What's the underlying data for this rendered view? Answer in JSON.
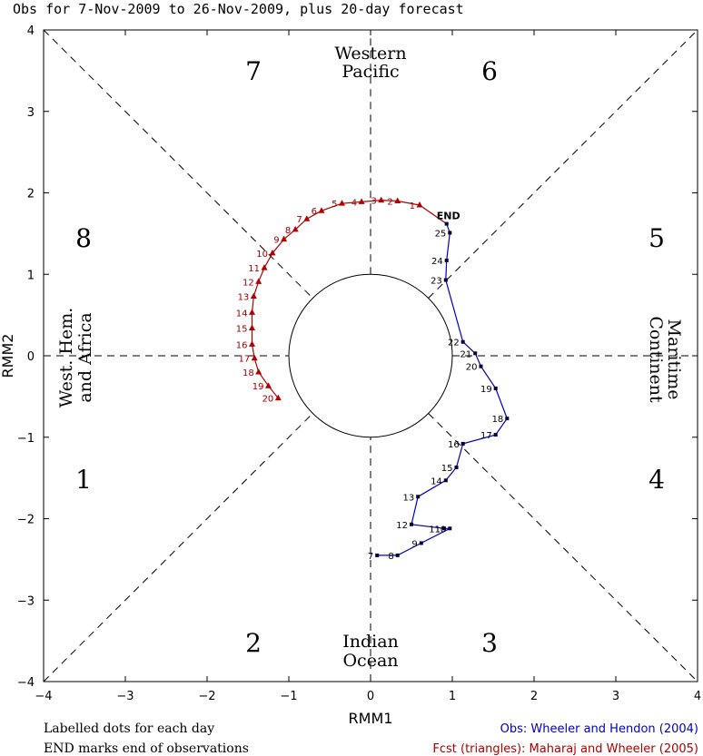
{
  "title": "Obs for  7-Nov-2009 to 26-Nov-2009, plus 20-day forecast",
  "colors": {
    "obs": "#0000c0",
    "forecast": "#b00000",
    "frame": "#000000"
  },
  "phases": [
    {
      "id": "1",
      "label": "1"
    },
    {
      "id": "2",
      "label": "2"
    },
    {
      "id": "3",
      "label": "3"
    },
    {
      "id": "4",
      "label": "4"
    },
    {
      "id": "5",
      "label": "5"
    },
    {
      "id": "6",
      "label": "6"
    },
    {
      "id": "7",
      "label": "7"
    },
    {
      "id": "8",
      "label": "8"
    }
  ],
  "regions": {
    "western_pacific": [
      "Western",
      "Pacific"
    ],
    "indian_ocean": [
      "Indian",
      "Ocean"
    ],
    "maritime_continent": [
      "Maritime",
      "Continent"
    ],
    "west_hem": [
      "West. Hem.",
      "and Africa"
    ]
  },
  "notes": {
    "line1": "Labelled dots for each day",
    "line2": "END marks end of observations",
    "obs_credit": "Obs: Wheeler and Hendon (2004)",
    "fcst_credit": "Fcst (triangles): Maharaj and Wheeler (2005)"
  },
  "chart_data": {
    "type": "scatter",
    "xlabel": "RMM1",
    "ylabel": "RMM2",
    "xlim": [
      -4,
      4
    ],
    "ylim": [
      -4,
      4
    ],
    "xticks": [
      "−4",
      "−3",
      "−2",
      "−1",
      "0",
      "1",
      "2",
      "3",
      "4"
    ],
    "yticks": [
      "−4",
      "−3",
      "−2",
      "−1",
      "0",
      "1",
      "2",
      "3",
      "4"
    ],
    "unit_circle_radius": 1,
    "end_label": "END",
    "series": [
      {
        "name": "Obs",
        "marker": "dot",
        "points": [
          {
            "day": "7",
            "x": 0.08,
            "y": -2.45
          },
          {
            "day": "8",
            "x": 0.33,
            "y": -2.45
          },
          {
            "day": "9",
            "x": 0.62,
            "y": -2.3
          },
          {
            "day": "10",
            "x": 0.97,
            "y": -2.12
          },
          {
            "day": "11",
            "x": 0.9,
            "y": -2.12
          },
          {
            "day": "12",
            "x": 0.5,
            "y": -2.07
          },
          {
            "day": "13",
            "x": 0.58,
            "y": -1.73
          },
          {
            "day": "14",
            "x": 0.92,
            "y": -1.53
          },
          {
            "day": "15",
            "x": 1.05,
            "y": -1.37
          },
          {
            "day": "16",
            "x": 1.13,
            "y": -1.08
          },
          {
            "day": "17",
            "x": 1.53,
            "y": -0.97
          },
          {
            "day": "18",
            "x": 1.67,
            "y": -0.77
          },
          {
            "day": "19",
            "x": 1.53,
            "y": -0.4
          },
          {
            "day": "20",
            "x": 1.35,
            "y": -0.13
          },
          {
            "day": "21",
            "x": 1.28,
            "y": 0.03
          },
          {
            "day": "22",
            "x": 1.13,
            "y": 0.17
          },
          {
            "day": "23",
            "x": 0.92,
            "y": 0.93
          },
          {
            "day": "24",
            "x": 0.93,
            "y": 1.17
          },
          {
            "day": "25",
            "x": 0.97,
            "y": 1.51
          },
          {
            "day": "",
            "x": 0.93,
            "y": 1.62
          }
        ]
      },
      {
        "name": "Fcst",
        "marker": "triangle",
        "points": [
          {
            "day": "1",
            "x": 0.6,
            "y": 1.85
          },
          {
            "day": "2",
            "x": 0.33,
            "y": 1.9
          },
          {
            "day": "3",
            "x": 0.13,
            "y": 1.91
          },
          {
            "day": "4",
            "x": -0.11,
            "y": 1.89
          },
          {
            "day": "5",
            "x": -0.35,
            "y": 1.87
          },
          {
            "day": "6",
            "x": -0.6,
            "y": 1.78
          },
          {
            "day": "7",
            "x": -0.78,
            "y": 1.68
          },
          {
            "day": "8",
            "x": -0.92,
            "y": 1.55
          },
          {
            "day": "9",
            "x": -1.06,
            "y": 1.43
          },
          {
            "day": "10",
            "x": -1.2,
            "y": 1.26
          },
          {
            "day": "11",
            "x": -1.3,
            "y": 1.08
          },
          {
            "day": "12",
            "x": -1.37,
            "y": 0.91
          },
          {
            "day": "13",
            "x": -1.43,
            "y": 0.73
          },
          {
            "day": "14",
            "x": -1.45,
            "y": 0.53
          },
          {
            "day": "15",
            "x": -1.45,
            "y": 0.34
          },
          {
            "day": "16",
            "x": -1.45,
            "y": 0.14
          },
          {
            "day": "17",
            "x": -1.42,
            "y": -0.03
          },
          {
            "day": "18",
            "x": -1.37,
            "y": -0.2
          },
          {
            "day": "19",
            "x": -1.25,
            "y": -0.37
          },
          {
            "day": "20",
            "x": -1.13,
            "y": -0.52
          }
        ]
      }
    ]
  }
}
